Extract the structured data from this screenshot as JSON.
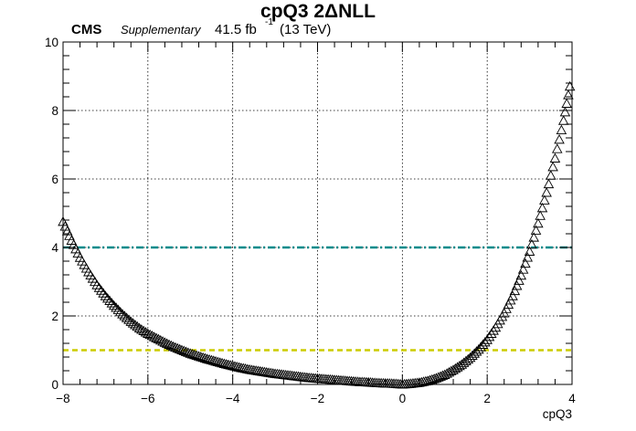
{
  "header": {
    "experiment": "CMS",
    "tag": "Supplementary",
    "lumi": "41.5 fb",
    "lumi_sup": "-1",
    "energy": "(13 TeV)"
  },
  "chart_data": {
    "type": "scatter",
    "title": "cpQ3 2ΔNLL",
    "xlabel": "cpQ3",
    "ylabel": "",
    "xlim": [
      -8,
      4
    ],
    "ylim": [
      0,
      10
    ],
    "x_ticks": [
      "−8",
      "−6",
      "−4",
      "−2",
      "0",
      "2",
      "4"
    ],
    "y_ticks": [
      "0",
      "2",
      "4",
      "6",
      "8",
      "10"
    ],
    "grid": true,
    "marker": "open-triangle",
    "reference_lines": [
      {
        "y": 4,
        "style": "dash-dot",
        "color": "#008b8b"
      },
      {
        "y": 1,
        "style": "dashed",
        "color": "#cccc00"
      }
    ],
    "series": [
      {
        "x": [
          -8.0,
          -7.8,
          -7.6,
          -7.4,
          -7.2,
          -7.0,
          -6.8,
          -6.6,
          -6.4,
          -6.2,
          -6.0,
          -5.8,
          -5.6,
          -5.4,
          -5.2,
          -5.0,
          -4.8,
          -4.6,
          -4.4,
          -4.2,
          -4.0,
          -3.8,
          -3.6,
          -3.4,
          -3.2,
          -3.0,
          -2.8,
          -2.6,
          -2.4,
          -2.2,
          -2.0,
          -1.8,
          -1.6,
          -1.4,
          -1.2,
          -1.0,
          -0.8,
          -0.6,
          -0.4,
          -0.2,
          0.0,
          0.2,
          0.4,
          0.6,
          0.8,
          1.0,
          1.2,
          1.4,
          1.6,
          1.8,
          2.0,
          2.2,
          2.4,
          2.6,
          2.8,
          3.0,
          3.2,
          3.4,
          3.6,
          3.8,
          3.95
        ],
        "y": [
          4.75,
          4.2,
          3.7,
          3.28,
          2.9,
          2.58,
          2.3,
          2.05,
          1.83,
          1.64,
          1.48,
          1.35,
          1.22,
          1.1,
          1.0,
          0.9,
          0.82,
          0.74,
          0.67,
          0.6,
          0.54,
          0.48,
          0.43,
          0.39,
          0.35,
          0.31,
          0.28,
          0.25,
          0.22,
          0.19,
          0.17,
          0.15,
          0.13,
          0.11,
          0.09,
          0.07,
          0.06,
          0.04,
          0.03,
          0.02,
          0.0,
          0.02,
          0.05,
          0.1,
          0.18,
          0.28,
          0.42,
          0.58,
          0.78,
          1.02,
          1.3,
          1.66,
          2.08,
          2.58,
          3.18,
          3.88,
          4.7,
          5.6,
          6.6,
          7.7,
          8.7
        ]
      }
    ]
  }
}
